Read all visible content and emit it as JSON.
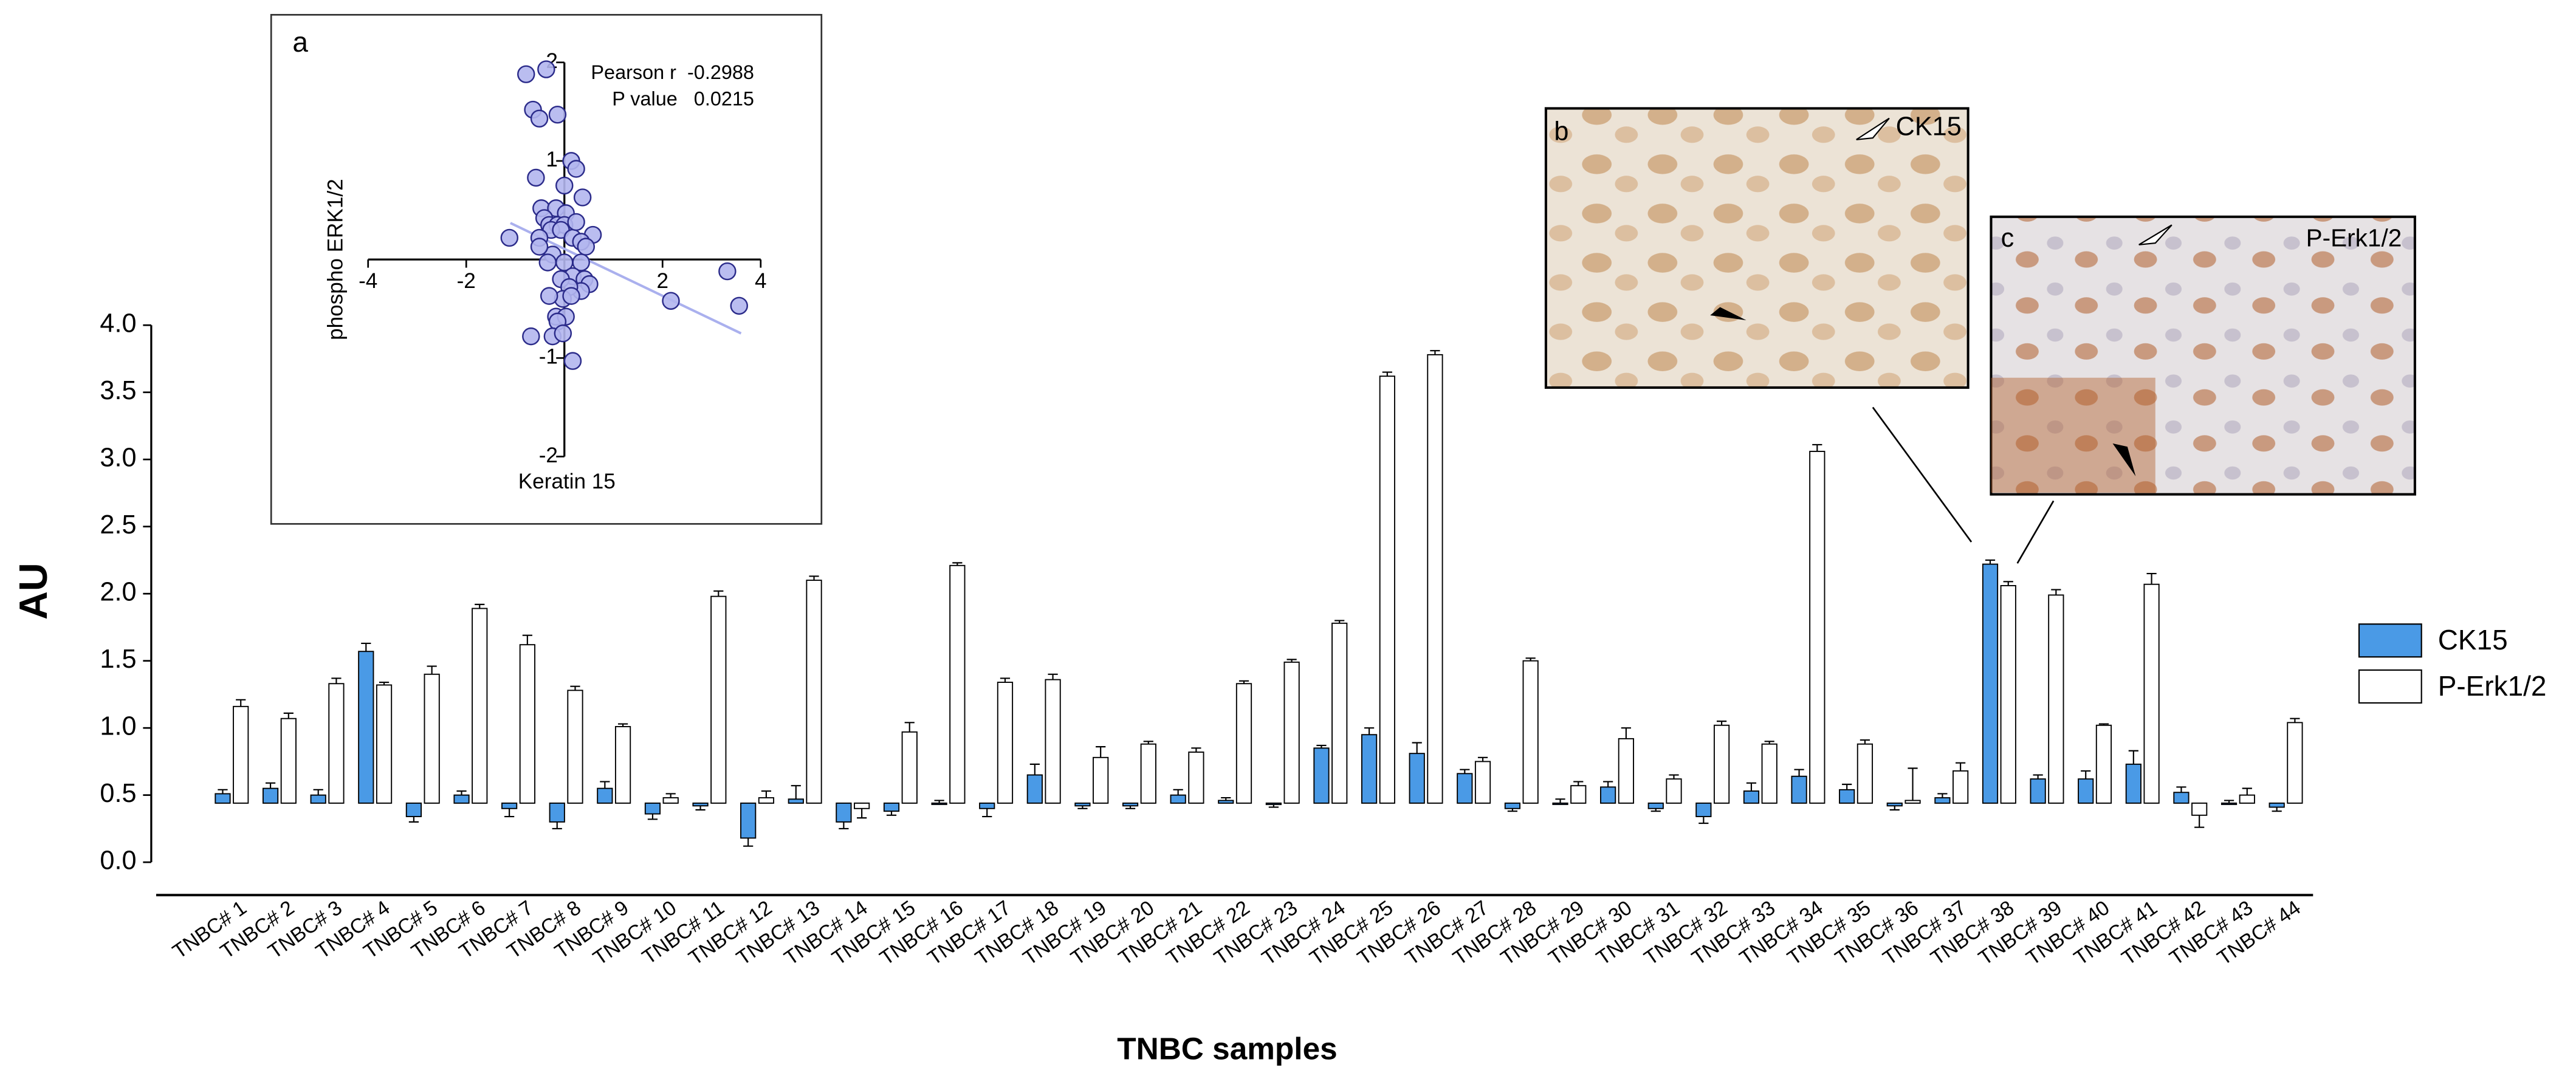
{
  "chart_data": [
    {
      "type": "bar",
      "x_label": "TNBC samples",
      "y_label": "AU",
      "categories": [
        "TNBC# 1",
        "TNBC# 2",
        "TNBC# 3",
        "TNBC# 4",
        "TNBC# 5",
        "TNBC# 6",
        "TNBC# 7",
        "TNBC# 8",
        "TNBC# 9",
        "TNBC# 10",
        "TNBC# 11",
        "TNBC# 12",
        "TNBC# 13",
        "TNBC# 14",
        "TNBC# 15",
        "TNBC# 16",
        "TNBC# 17",
        "TNBC# 18",
        "TNBC# 19",
        "TNBC# 20",
        "TNBC# 21",
        "TNBC# 22",
        "TNBC# 23",
        "TNBC# 24",
        "TNBC# 25",
        "TNBC# 26",
        "TNBC# 27",
        "TNBC# 28",
        "TNBC# 29",
        "TNBC# 30",
        "TNBC# 31",
        "TNBC# 32",
        "TNBC# 33",
        "TNBC# 34",
        "TNBC# 35",
        "TNBC# 36",
        "TNBC# 37",
        "TNBC# 38",
        "TNBC# 39",
        "TNBC# 40",
        "TNBC# 41",
        "TNBC# 42",
        "TNBC# 43",
        "TNBC# 44"
      ],
      "series": [
        {
          "name": "CK15",
          "color": "#4a9ae6",
          "values": [
            0.51,
            0.55,
            0.5,
            1.57,
            0.34,
            0.5,
            0.4,
            0.3,
            0.55,
            0.36,
            0.42,
            0.18,
            0.47,
            0.3,
            0.38,
            0.44,
            0.4,
            0.65,
            0.42,
            0.42,
            0.5,
            0.46,
            0.43,
            0.85,
            0.95,
            0.81,
            0.66,
            0.4,
            0.44,
            0.56,
            0.4,
            0.34,
            0.53,
            0.64,
            0.54,
            0.42,
            0.48,
            2.22,
            0.62,
            0.62,
            0.73,
            0.52,
            0.44,
            0.41
          ],
          "errors": [
            0.03,
            0.04,
            0.04,
            0.06,
            0.04,
            0.03,
            0.06,
            0.05,
            0.05,
            0.04,
            0.03,
            0.06,
            0.1,
            0.05,
            0.03,
            0.02,
            0.06,
            0.08,
            0.02,
            0.02,
            0.04,
            0.02,
            0.02,
            0.02,
            0.05,
            0.08,
            0.03,
            0.02,
            0.03,
            0.04,
            0.02,
            0.05,
            0.06,
            0.05,
            0.04,
            0.03,
            0.03,
            0.03,
            0.03,
            0.06,
            0.1,
            0.04,
            0.02,
            0.03
          ]
        },
        {
          "name": "P-Erk1/2",
          "color": "#ffffff",
          "values": [
            1.16,
            1.07,
            1.33,
            1.32,
            1.4,
            1.89,
            1.62,
            1.28,
            1.01,
            0.48,
            1.98,
            0.48,
            2.1,
            0.4,
            0.97,
            2.21,
            1.34,
            1.36,
            0.78,
            0.88,
            0.82,
            1.33,
            1.49,
            1.78,
            3.62,
            3.78,
            0.75,
            1.5,
            0.57,
            0.92,
            0.62,
            1.02,
            0.88,
            3.06,
            0.88,
            0.46,
            0.68,
            2.06,
            1.99,
            1.02,
            2.07,
            0.35,
            0.5,
            1.04
          ],
          "errors": [
            0.05,
            0.04,
            0.04,
            0.02,
            0.06,
            0.03,
            0.07,
            0.03,
            0.02,
            0.03,
            0.04,
            0.05,
            0.03,
            0.07,
            0.07,
            0.02,
            0.03,
            0.04,
            0.08,
            0.02,
            0.03,
            0.02,
            0.02,
            0.02,
            0.03,
            0.03,
            0.03,
            0.02,
            0.03,
            0.08,
            0.03,
            0.03,
            0.02,
            0.05,
            0.03,
            0.24,
            0.06,
            0.03,
            0.04,
            0.01,
            0.08,
            0.09,
            0.05,
            0.03
          ]
        }
      ],
      "ylim": [
        0,
        4
      ],
      "yticks": [
        {
          "value": 0,
          "label": "0.0"
        },
        0.5,
        {
          "value": 1,
          "label": "1.0"
        },
        1.5,
        {
          "value": 2,
          "label": "2.0"
        },
        2.5,
        {
          "value": 3,
          "label": "3.0"
        },
        3.5,
        {
          "value": 4,
          "label": "4.0"
        }
      ],
      "baseline": 0.44,
      "legend": "right"
    },
    {
      "type": "scatter",
      "panel": "a",
      "x_label": "Keratin 15",
      "y_label": "phospho ERK1/2",
      "x": [
        -0.78,
        -0.37,
        -0.64,
        -0.51,
        -0.14,
        0.14,
        0.24,
        -0.58,
        0,
        0.37,
        -0.47,
        -0.17,
        0.03,
        -0.41,
        -0.31,
        -0.14,
        0,
        -0.27,
        -0.07,
        0.58,
        -1.12,
        -0.51,
        0.17,
        0.34,
        -0.24,
        0,
        0.34,
        0.17,
        0.41,
        -0.07,
        0.51,
        0.34,
        0.1,
        -0.03,
        -0.31,
        -0.17,
        0.03,
        -0.14,
        -0.24,
        -0.03,
        -0.68,
        0.17,
        3.32,
        3.56,
        2.17,
        -0.34,
        -0.51,
        0.24,
        0.44,
        0.14
      ],
      "y": [
        1.88,
        1.93,
        1.52,
        1.43,
        1.47,
        1.0,
        0.92,
        0.83,
        0.75,
        0.63,
        0.52,
        0.52,
        0.47,
        0.42,
        0.35,
        0.35,
        0.35,
        0.3,
        0.3,
        0.25,
        0.22,
        0.22,
        0.22,
        0.18,
        0.05,
        -0.03,
        -0.03,
        -0.17,
        -0.2,
        -0.2,
        -0.25,
        -0.32,
        -0.28,
        -0.4,
        -0.37,
        -0.58,
        -0.58,
        -0.63,
        -0.78,
        -0.75,
        -0.78,
        -1.03,
        -0.12,
        -0.47,
        -0.42,
        -0.03,
        0.13,
        0.38,
        0.13,
        -0.37
      ],
      "xlim": [
        -4,
        4
      ],
      "ylim": [
        -2,
        2
      ],
      "xticks": [
        -4,
        -2,
        2,
        4
      ],
      "yticks": [
        -2,
        -1,
        1,
        2
      ],
      "annotations": [
        "Pearson r  -0.2988",
        "P value   0.0215"
      ],
      "fit": {
        "x": [
          -1.1,
          3.6
        ],
        "y": [
          0.37,
          -0.75
        ],
        "color": "#aab0ee"
      },
      "color": "#b3b6ee"
    }
  ],
  "images": [
    {
      "label": "b",
      "caption": "CK15"
    },
    {
      "label": "c",
      "caption": "P-Erk1/2"
    }
  ]
}
